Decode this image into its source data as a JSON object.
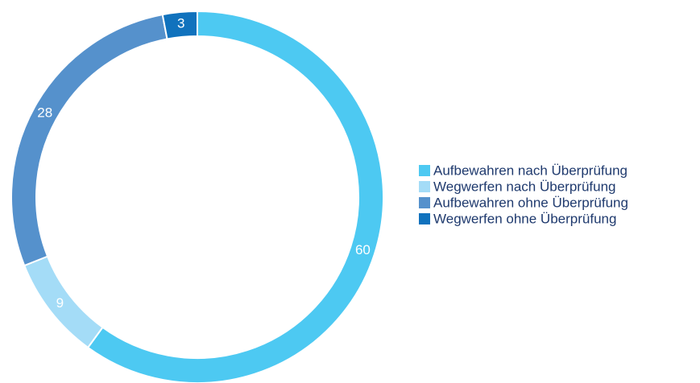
{
  "chart_data": {
    "type": "donut",
    "categories": [
      "Aufbewahren nach Überprüfung",
      "Wegwerfen nach Überprüfung",
      "Aufbewahren ohne Überprüfung",
      "Wegwerfen ohne Überprüfung"
    ],
    "values": [
      60,
      9,
      28,
      3
    ],
    "colors": [
      "#4dc9f2",
      "#a4dcf7",
      "#5591cc",
      "#1072bd"
    ],
    "legend": "right"
  }
}
